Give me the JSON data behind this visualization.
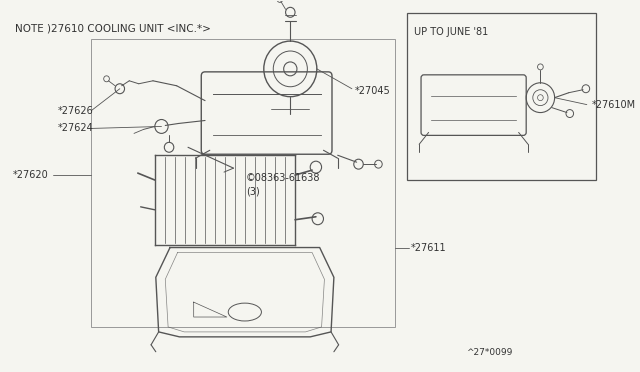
{
  "title": "NOTE )27610 COOLING UNIT <INC.*>",
  "bg_color": "#f5f5f0",
  "line_color": "#555555",
  "text_color": "#333333",
  "font_size": 7,
  "title_font_size": 7.5,
  "inset_label": "UP TO JUNE '81",
  "page_ref": "^27*0099",
  "part_labels": {
    "27045": "*27045",
    "27626": "*27626",
    "27624": "*27624",
    "27620": "*27620",
    "screw": "©08363-61638\n(3)",
    "27611": "*27611",
    "27610M": "*27610M"
  }
}
